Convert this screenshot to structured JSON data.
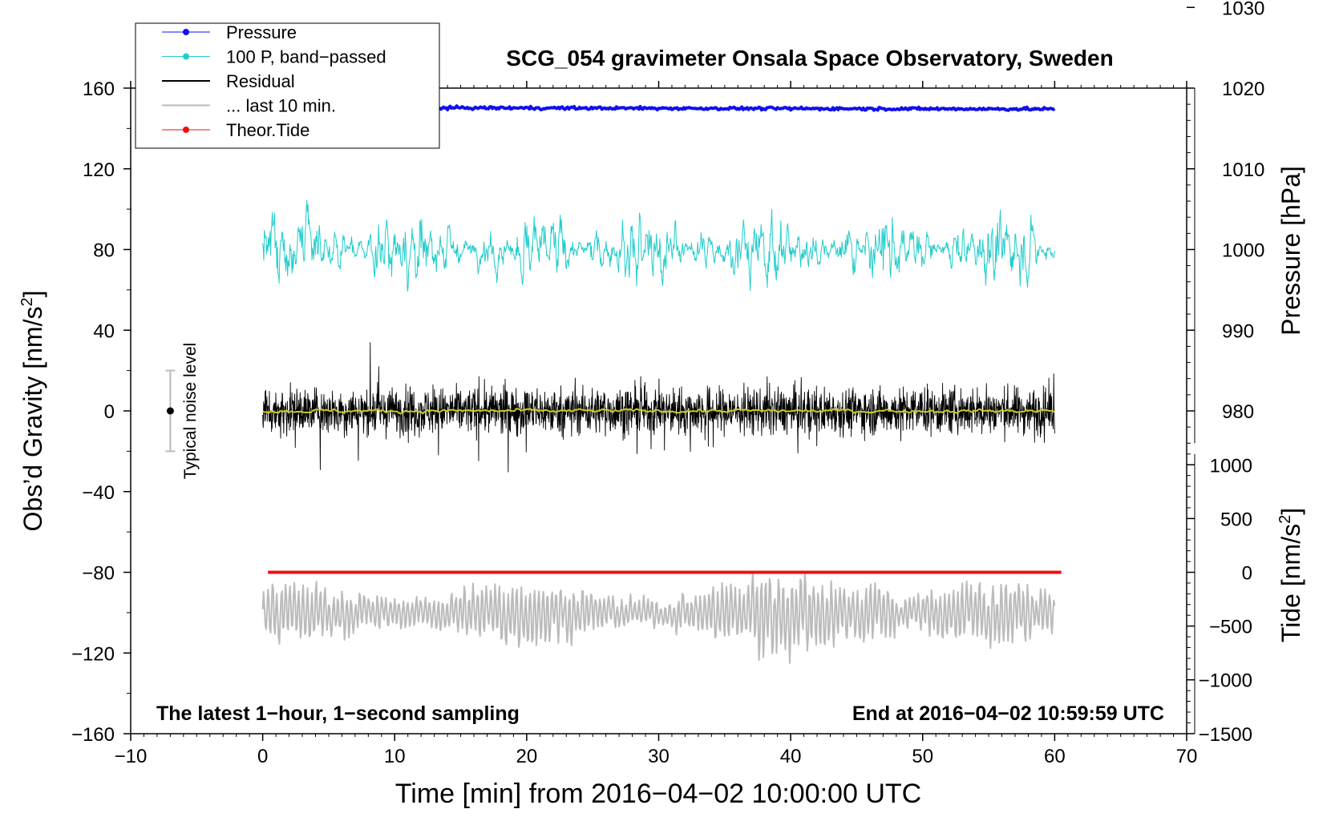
{
  "chart_data": {
    "type": "line",
    "title": "SCG_054 gravimeter Onsala Space Observatory, Sweden",
    "xlabel": "Time [min] from 2016−04−02 10:00:00 UTC",
    "ylabel_left": "Obs’d Gravity [nm/s",
    "ylabel_left_sup": "2",
    "ylabel_left_end": "]",
    "ylabel_right_pressure": "Pressure [hPa]",
    "ylabel_right_tide": "Tide [nm/s",
    "ylabel_right_tide_sup": "2",
    "ylabel_right_tide_end": "]",
    "xlim": [
      -10,
      70
    ],
    "ylim": [
      -160,
      160
    ],
    "x_ticks": [
      "−10",
      "0",
      "10",
      "20",
      "30",
      "40",
      "50",
      "60",
      "70"
    ],
    "x_tick_values": [
      -10,
      0,
      10,
      20,
      30,
      40,
      50,
      60,
      70
    ],
    "y_ticks": [
      "160",
      "120",
      "80",
      "40",
      "0",
      "−40",
      "−80",
      "−120",
      "−160"
    ],
    "y_tick_values": [
      160,
      120,
      80,
      40,
      0,
      -40,
      -80,
      -120,
      -160
    ],
    "pressure_ticks": [
      "1030",
      "1020",
      "1010",
      "1000",
      "990",
      "980"
    ],
    "pressure_tick_values": [
      1030,
      1020,
      1010,
      1000,
      990,
      980
    ],
    "pressure_to_gravity": {
      "slope": 4.0,
      "ref_hpa": 1000,
      "ref_gravity": 80
    },
    "tide_ticks": [
      "1000",
      "500",
      "0",
      "−500",
      "−1000",
      "−1500"
    ],
    "tide_tick_values": [
      1000,
      500,
      0,
      -500,
      -1000,
      -1500
    ],
    "tide_to_gravity": {
      "slope": 0.0533,
      "ref_nms2": 0,
      "ref_gravity": -80
    },
    "legend": {
      "position": "top-left",
      "entries": [
        {
          "label": "Pressure",
          "color": "#1010ee",
          "marker": true
        },
        {
          "label": "100 P, band−passed",
          "color": "#22cccc",
          "marker": true
        },
        {
          "label": "Residual",
          "color": "#000000",
          "marker": false
        },
        {
          "label": "... last 10 min.",
          "color": "#bbbbbb",
          "marker": false
        },
        {
          "label": "Theor.Tide",
          "color": "#ee1111",
          "marker": true
        }
      ]
    },
    "annotations": {
      "noise_label": "Typical noise level",
      "noise_center": 0,
      "noise_halfwidth": 20,
      "noise_x": -7,
      "bottom_left": "The latest 1−hour, 1−second sampling",
      "bottom_right": "End at 2016−04−02 10:59:59 UTC"
    },
    "series": [
      {
        "name": "Pressure",
        "color": "#1010ee",
        "x_range": [
          0,
          60
        ],
        "level_hpa": 1017.6,
        "trend_hpa": -0.2,
        "noise_hpa": 0.25
      },
      {
        "name": "100 P, band−passed",
        "color": "#22cccc",
        "x_range": [
          0,
          60
        ],
        "offset": 80,
        "amplitude": 22
      },
      {
        "name": "Residual",
        "color": "#000000",
        "x_range": [
          0,
          60
        ],
        "offset": 0,
        "amplitude": 25
      },
      {
        "name": "Residual smoothed",
        "color": "#cccc22",
        "x_range": [
          0,
          60
        ],
        "offset": 0,
        "amplitude": 1.5
      },
      {
        "name": "... last 10 min.",
        "color": "#bbbbbb",
        "x_range": [
          0,
          60
        ],
        "offset": -100,
        "amplitude": 20
      },
      {
        "name": "Theor.Tide",
        "color": "#ee1111",
        "x_range": [
          0.4,
          60.5
        ],
        "values_nms2": [
          0,
          0
        ]
      }
    ]
  }
}
